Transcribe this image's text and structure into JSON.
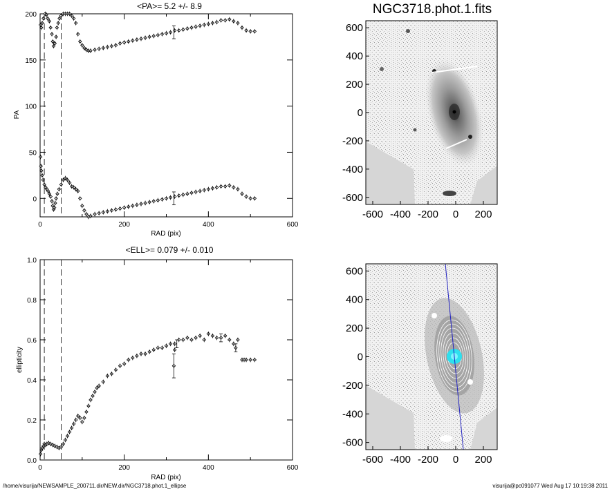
{
  "chart_data": [
    {
      "type": "scatter",
      "title": "<PA>=   5.2 +/-   8.9",
      "xlabel": "RAD (pix)",
      "ylabel": "PA",
      "xlim": [
        0,
        600
      ],
      "ylim": [
        -20,
        200
      ],
      "x_ticks": [
        "0",
        "200",
        "400",
        "600"
      ],
      "x_minor_ticks": [
        "100",
        "300",
        "500"
      ],
      "y_ticks": [
        "0",
        "50",
        "100",
        "150",
        "200"
      ],
      "vlines": [
        10,
        50
      ],
      "series": [
        {
          "points": [
            [
              1,
              188
            ],
            [
              3,
              185
            ],
            [
              5,
              190
            ],
            [
              8,
              195
            ],
            [
              12,
              200
            ],
            [
              15,
              199
            ],
            [
              18,
              195
            ],
            [
              22,
              192
            ],
            [
              25,
              185
            ],
            [
              28,
              178
            ],
            [
              30,
              170
            ],
            [
              32,
              165
            ],
            [
              35,
              168
            ],
            [
              38,
              175
            ],
            [
              40,
              185
            ],
            [
              43,
              190
            ],
            [
              46,
              195
            ],
            [
              50,
              198
            ],
            [
              55,
              200
            ],
            [
              60,
              200
            ],
            [
              65,
              200
            ],
            [
              70,
              200
            ],
            [
              75,
              198
            ],
            [
              80,
              195
            ],
            [
              85,
              190
            ],
            [
              90,
              178
            ],
            [
              95,
              170
            ],
            [
              100,
              166
            ],
            [
              105,
              163
            ],
            [
              110,
              161
            ],
            [
              115,
              160
            ],
            [
              120,
              160
            ],
            [
              130,
              161
            ],
            [
              140,
              162
            ],
            [
              150,
              163
            ],
            [
              160,
              164
            ],
            [
              170,
              165
            ],
            [
              180,
              166
            ],
            [
              190,
              168
            ],
            [
              200,
              169
            ],
            [
              210,
              170
            ],
            [
              220,
              171
            ],
            [
              230,
              172
            ],
            [
              240,
              173
            ],
            [
              250,
              174
            ],
            [
              260,
              175
            ],
            [
              270,
              176
            ],
            [
              280,
              177
            ],
            [
              290,
              178
            ],
            [
              300,
              179
            ],
            [
              310,
              180
            ],
            [
              320,
              182
            ],
            [
              330,
              182
            ],
            [
              340,
              183
            ],
            [
              350,
              184
            ],
            [
              360,
              185
            ],
            [
              370,
              186
            ],
            [
              380,
              187
            ],
            [
              390,
              188
            ],
            [
              400,
              189
            ],
            [
              410,
              190
            ],
            [
              420,
              191
            ],
            [
              430,
              193
            ],
            [
              440,
              193
            ],
            [
              450,
              194
            ],
            [
              460,
              192
            ],
            [
              470,
              190
            ],
            [
              480,
              185
            ],
            [
              490,
              182
            ],
            [
              500,
              181
            ],
            [
              510,
              181
            ]
          ]
        },
        {
          "points": [
            [
              1,
              45
            ],
            [
              2,
              35
            ],
            [
              3,
              30
            ],
            [
              5,
              25
            ],
            [
              7,
              20
            ],
            [
              10,
              15
            ],
            [
              13,
              12
            ],
            [
              16,
              10
            ],
            [
              19,
              8
            ],
            [
              22,
              5
            ],
            [
              25,
              2
            ],
            [
              28,
              -3
            ],
            [
              30,
              -8
            ],
            [
              32,
              -12
            ],
            [
              34,
              -10
            ],
            [
              36,
              -5
            ],
            [
              38,
              0
            ],
            [
              41,
              5
            ],
            [
              45,
              10
            ],
            [
              50,
              15
            ],
            [
              55,
              20
            ],
            [
              60,
              22
            ],
            [
              65,
              20
            ],
            [
              70,
              17
            ],
            [
              75,
              13
            ],
            [
              80,
              12
            ],
            [
              85,
              10
            ],
            [
              90,
              8
            ],
            [
              95,
              0
            ],
            [
              100,
              -8
            ],
            [
              105,
              -13
            ],
            [
              110,
              -17
            ],
            [
              115,
              -20
            ],
            [
              120,
              -19
            ],
            [
              130,
              -17
            ],
            [
              140,
              -16
            ],
            [
              150,
              -15
            ],
            [
              160,
              -14
            ],
            [
              170,
              -13
            ],
            [
              180,
              -12
            ],
            [
              190,
              -11
            ],
            [
              200,
              -10
            ],
            [
              210,
              -9
            ],
            [
              220,
              -8
            ],
            [
              230,
              -7
            ],
            [
              240,
              -6
            ],
            [
              250,
              -5
            ],
            [
              260,
              -4
            ],
            [
              270,
              -3
            ],
            [
              280,
              -2
            ],
            [
              290,
              -1
            ],
            [
              300,
              0
            ],
            [
              310,
              1
            ],
            [
              320,
              2
            ],
            [
              330,
              3
            ],
            [
              340,
              4
            ],
            [
              350,
              5
            ],
            [
              360,
              6
            ],
            [
              370,
              7
            ],
            [
              380,
              8
            ],
            [
              390,
              9
            ],
            [
              400,
              10
            ],
            [
              410,
              11
            ],
            [
              420,
              12
            ],
            [
              430,
              13
            ],
            [
              440,
              13
            ],
            [
              450,
              14
            ],
            [
              460,
              12
            ],
            [
              470,
              10
            ],
            [
              480,
              5
            ],
            [
              490,
              2
            ],
            [
              500,
              0
            ],
            [
              510,
              0
            ]
          ]
        }
      ],
      "error_bars": [
        [
          318,
          0,
          7
        ],
        [
          318,
          180,
          7
        ]
      ]
    },
    {
      "type": "image",
      "title": "NGC3718.phot.1.fits",
      "xlim": [
        -650,
        300
      ],
      "ylim": [
        -650,
        650
      ],
      "x_ticks": [
        "-600",
        "-400",
        "-200",
        "0",
        "200"
      ],
      "y_ticks": [
        "600",
        "400",
        "200",
        "0",
        "-200",
        "-400",
        "-600"
      ]
    },
    {
      "type": "scatter",
      "title": "<ELL>= 0.079 +/-  0.010",
      "xlabel": "RAD (pix)",
      "ylabel": "ellipticity",
      "xlim": [
        0,
        600
      ],
      "ylim": [
        0,
        1
      ],
      "x_ticks": [
        "0",
        "200",
        "400",
        "600"
      ],
      "x_minor_ticks": [
        "100",
        "300",
        "500"
      ],
      "y_ticks": [
        "0.0",
        "0.2",
        "0.4",
        "0.6",
        "0.8",
        "1.0"
      ],
      "vlines": [
        10,
        50
      ],
      "series": [
        {
          "points": [
            [
              1,
              0.03
            ],
            [
              3,
              0.05
            ],
            [
              5,
              0.06
            ],
            [
              8,
              0.07
            ],
            [
              10,
              0.08
            ],
            [
              13,
              0.075
            ],
            [
              16,
              0.08
            ],
            [
              20,
              0.085
            ],
            [
              25,
              0.08
            ],
            [
              30,
              0.075
            ],
            [
              35,
              0.07
            ],
            [
              40,
              0.065
            ],
            [
              45,
              0.06
            ],
            [
              50,
              0.065
            ],
            [
              55,
              0.08
            ],
            [
              60,
              0.1
            ],
            [
              65,
              0.12
            ],
            [
              70,
              0.14
            ],
            [
              75,
              0.16
            ],
            [
              80,
              0.18
            ],
            [
              85,
              0.2
            ],
            [
              90,
              0.22
            ],
            [
              95,
              0.21
            ],
            [
              100,
              0.19
            ],
            [
              105,
              0.21
            ],
            [
              110,
              0.24
            ],
            [
              115,
              0.27
            ],
            [
              120,
              0.3
            ],
            [
              125,
              0.32
            ],
            [
              130,
              0.34
            ],
            [
              135,
              0.36
            ],
            [
              140,
              0.37
            ],
            [
              150,
              0.39
            ],
            [
              160,
              0.42
            ],
            [
              170,
              0.43
            ],
            [
              180,
              0.45
            ],
            [
              190,
              0.47
            ],
            [
              200,
              0.48
            ],
            [
              210,
              0.5
            ],
            [
              220,
              0.51
            ],
            [
              230,
              0.52
            ],
            [
              240,
              0.53
            ],
            [
              250,
              0.53
            ],
            [
              260,
              0.54
            ],
            [
              270,
              0.55
            ],
            [
              280,
              0.56
            ],
            [
              290,
              0.56
            ],
            [
              300,
              0.57
            ],
            [
              310,
              0.58
            ],
            [
              320,
              0.58
            ],
            [
              330,
              0.6
            ],
            [
              340,
              0.6
            ],
            [
              350,
              0.61
            ],
            [
              360,
              0.6
            ],
            [
              370,
              0.61
            ],
            [
              380,
              0.62
            ],
            [
              390,
              0.6
            ],
            [
              400,
              0.63
            ],
            [
              410,
              0.62
            ],
            [
              420,
              0.61
            ],
            [
              430,
              0.61
            ],
            [
              440,
              0.62
            ],
            [
              450,
              0.6
            ],
            [
              460,
              0.58
            ],
            [
              470,
              0.6
            ],
            [
              480,
              0.5
            ],
            [
              490,
              0.5
            ],
            [
              500,
              0.5
            ],
            [
              510,
              0.5
            ]
          ]
        },
        {
          "points": [
            [
              318,
              0.47
            ],
            [
              320,
              0.55
            ],
            [
              465,
              0.56
            ],
            [
              485,
              0.5
            ]
          ]
        }
      ],
      "error_bars": [
        [
          318,
          0.47,
          0.06
        ],
        [
          325,
          0.58,
          0.02
        ],
        [
          430,
          0.61,
          0.02
        ],
        [
          465,
          0.56,
          0.02
        ]
      ]
    },
    {
      "type": "image",
      "xlim": [
        -650,
        300
      ],
      "ylim": [
        -650,
        650
      ],
      "x_ticks": [
        "-600",
        "-400",
        "-200",
        "0",
        "200"
      ],
      "y_ticks": [
        "600",
        "400",
        "200",
        "0",
        "-200",
        "-400",
        "-600"
      ]
    }
  ],
  "footer": {
    "left": "/home/visurija/NEWSAMPLE_200711.dir/NEW.dir/NGC3718.phot.1_ellipse",
    "right": "visurija@pc091077  Wed Aug 17 10:19:38 2011"
  }
}
